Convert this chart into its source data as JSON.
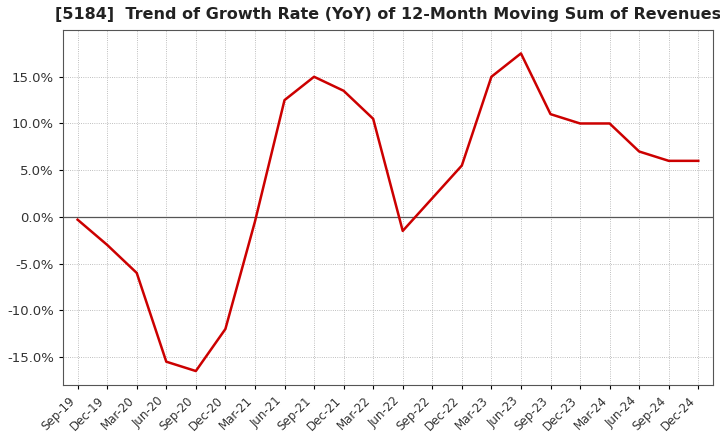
{
  "title": "[5184]  Trend of Growth Rate (YoY) of 12-Month Moving Sum of Revenues",
  "title_fontsize": 11.5,
  "background_color": "#ffffff",
  "grid_color": "#aaaaaa",
  "line_color": "#cc0000",
  "x_labels": [
    "Sep-19",
    "Dec-19",
    "Mar-20",
    "Jun-20",
    "Sep-20",
    "Dec-20",
    "Mar-21",
    "Jun-21",
    "Sep-21",
    "Dec-21",
    "Mar-22",
    "Jun-22",
    "Sep-22",
    "Dec-22",
    "Mar-23",
    "Jun-23",
    "Sep-23",
    "Dec-23",
    "Mar-24",
    "Jun-24",
    "Sep-24",
    "Dec-24"
  ],
  "y_values": [
    -0.3,
    -3.0,
    -6.0,
    -15.5,
    -16.5,
    -12.0,
    -0.5,
    12.5,
    15.0,
    13.5,
    10.5,
    -1.5,
    2.0,
    5.5,
    15.0,
    17.5,
    11.0,
    10.0,
    10.0,
    7.0,
    6.0,
    6.0
  ],
  "ylim": [
    -18,
    20
  ],
  "yticks": [
    -15.0,
    -10.0,
    -5.0,
    0.0,
    5.0,
    10.0,
    15.0
  ],
  "ylabel_fontsize": 9.5,
  "xlabel_fontsize": 8.5
}
